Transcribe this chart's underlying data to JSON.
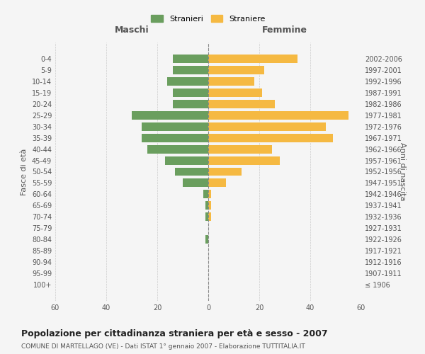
{
  "age_groups": [
    "100+",
    "95-99",
    "90-94",
    "85-89",
    "80-84",
    "75-79",
    "70-74",
    "65-69",
    "60-64",
    "55-59",
    "50-54",
    "45-49",
    "40-44",
    "35-39",
    "30-34",
    "25-29",
    "20-24",
    "15-19",
    "10-14",
    "5-9",
    "0-4"
  ],
  "birth_years": [
    "≤ 1906",
    "1907-1911",
    "1912-1916",
    "1917-1921",
    "1922-1926",
    "1927-1931",
    "1932-1936",
    "1937-1941",
    "1942-1946",
    "1947-1951",
    "1952-1956",
    "1957-1961",
    "1962-1966",
    "1967-1971",
    "1972-1976",
    "1977-1981",
    "1982-1986",
    "1987-1991",
    "1992-1996",
    "1997-2001",
    "2002-2006"
  ],
  "maschi": [
    0,
    0,
    0,
    0,
    1,
    0,
    1,
    1,
    2,
    10,
    13,
    17,
    24,
    26,
    26,
    30,
    14,
    14,
    16,
    14,
    14
  ],
  "femmine": [
    0,
    0,
    0,
    0,
    0,
    0,
    1,
    1,
    1,
    7,
    13,
    28,
    25,
    49,
    46,
    55,
    26,
    21,
    18,
    22,
    35
  ],
  "maschi_color": "#6a9e5e",
  "femmine_color": "#f5b942",
  "background_color": "#f5f5f5",
  "grid_color": "#cccccc",
  "title": "Popolazione per cittadinanza straniera per età e sesso - 2007",
  "subtitle": "COMUNE DI MARTELLAGO (VE) - Dati ISTAT 1° gennaio 2007 - Elaborazione TUTTITALIA.IT",
  "xlabel_left": "Maschi",
  "xlabel_right": "Femmine",
  "ylabel_left": "Fasce di età",
  "ylabel_right": "Anni di nascita",
  "legend_maschi": "Stranieri",
  "legend_femmine": "Straniere",
  "xlim": 60
}
